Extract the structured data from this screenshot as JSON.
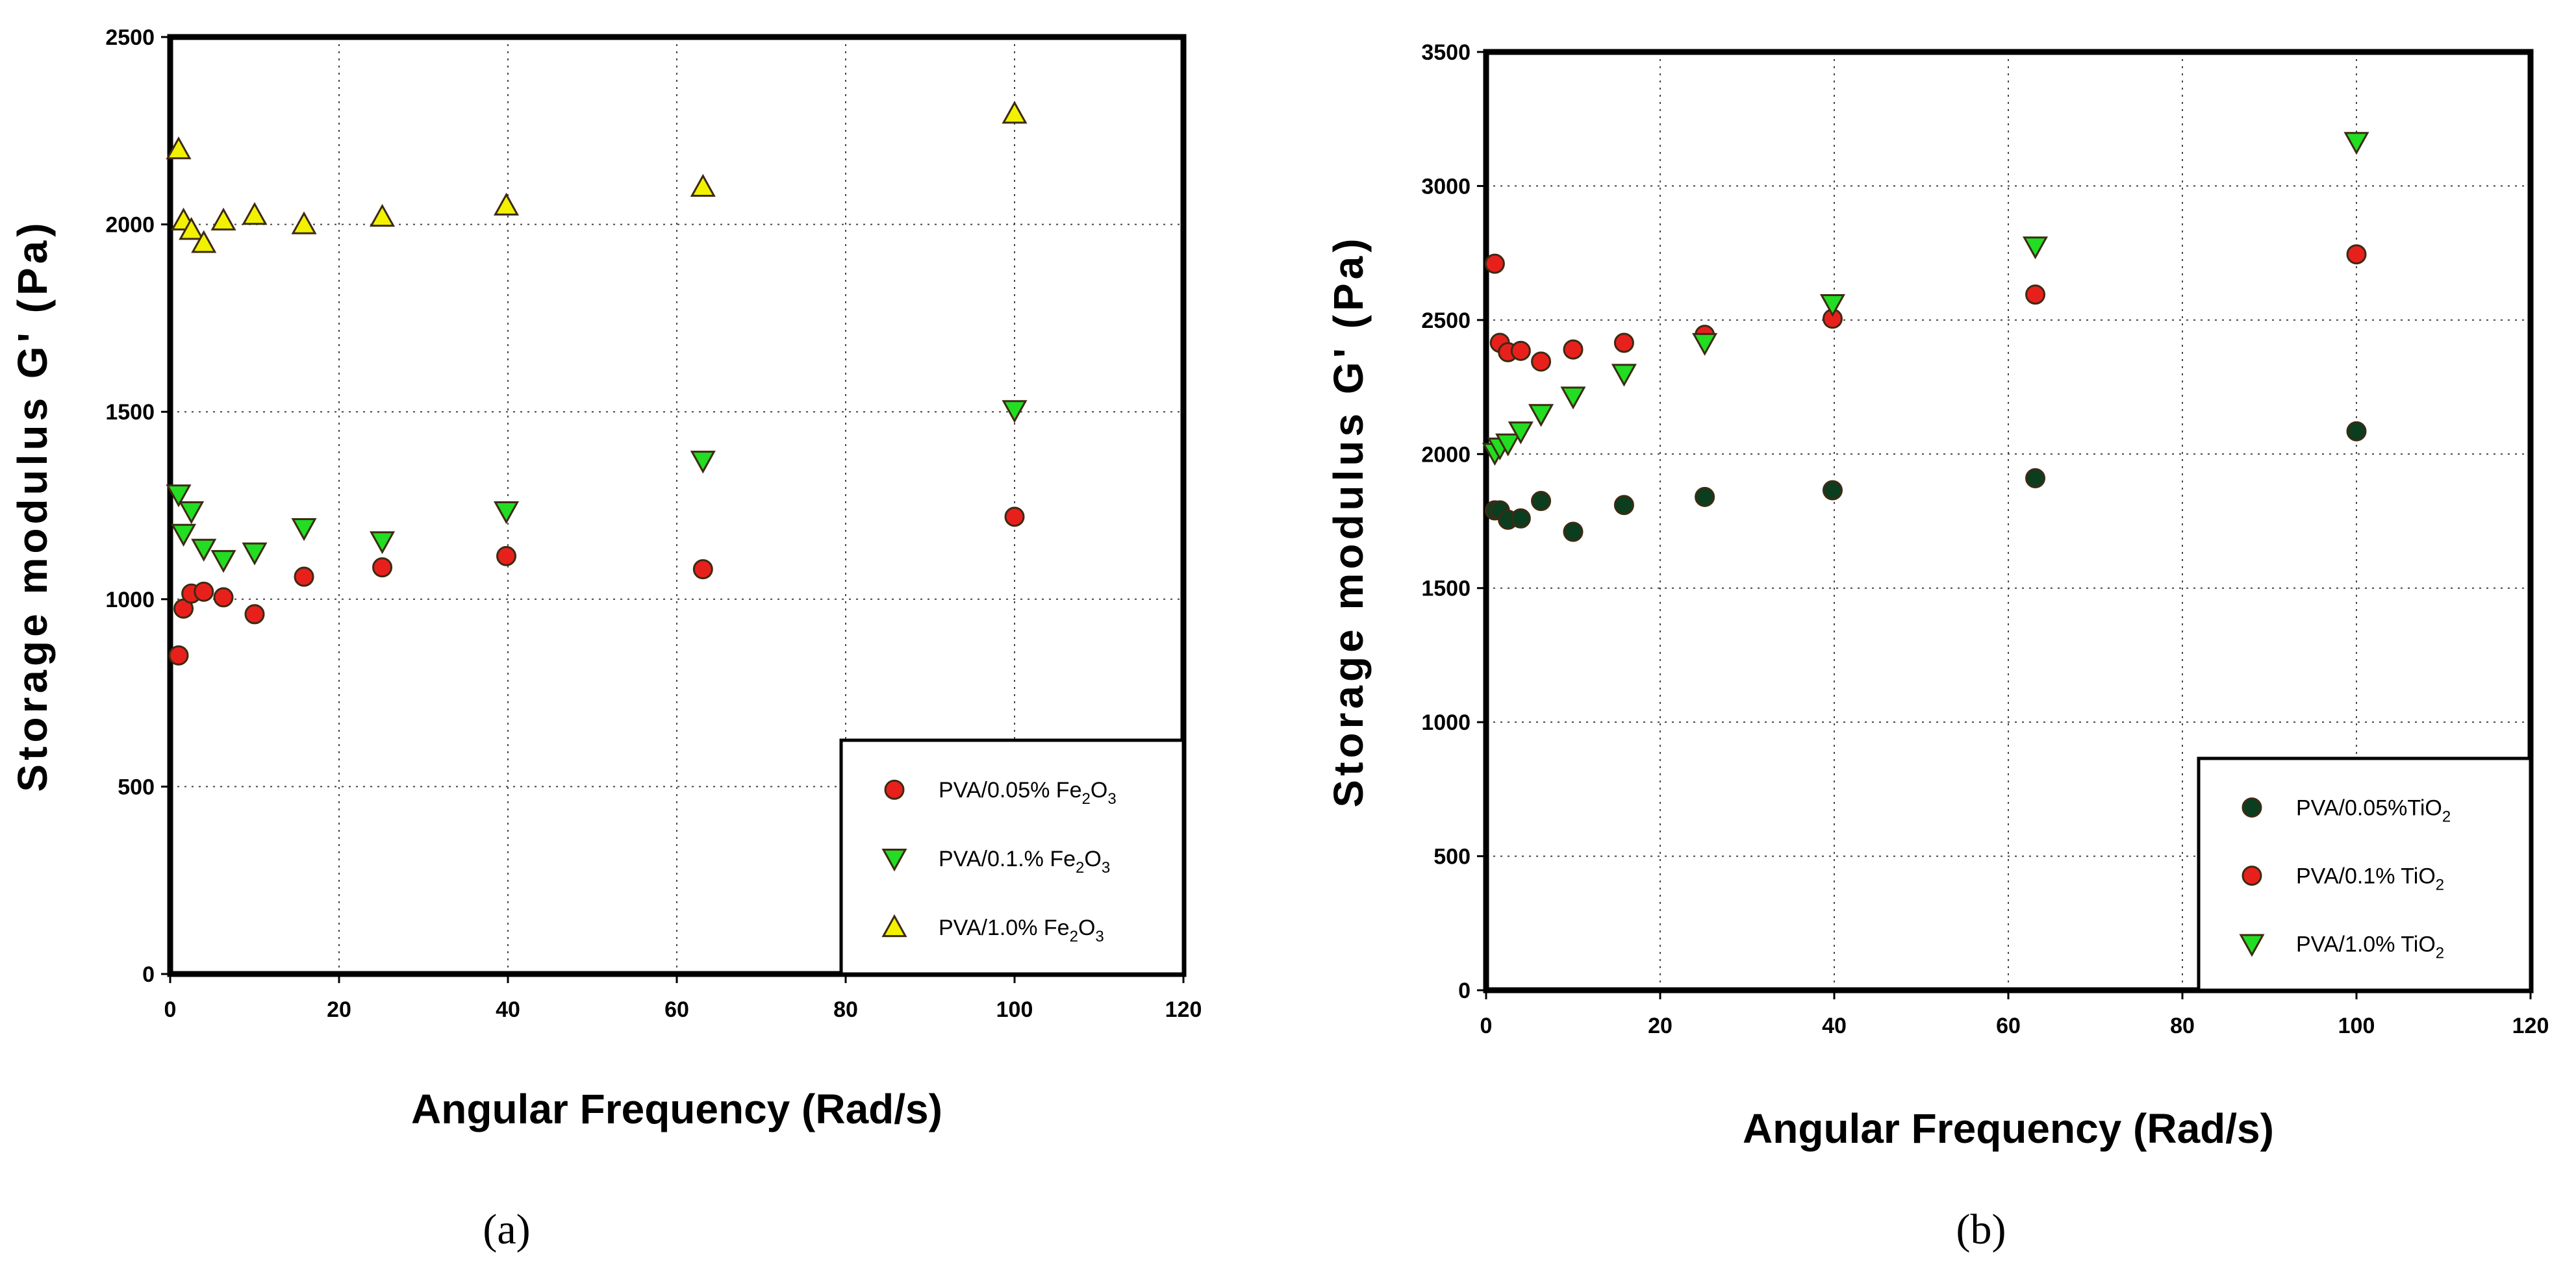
{
  "chart_data": [
    {
      "type": "scatter",
      "panel_label": "(a)",
      "xlabel": "Angular Frequency (Rad/s)",
      "ylabel": "Storage modulus G' (Pa)",
      "xlim": [
        0,
        120
      ],
      "ylim": [
        0,
        2500
      ],
      "xticks": [
        0,
        20,
        40,
        60,
        80,
        100,
        120
      ],
      "yticks": [
        0,
        500,
        1000,
        1500,
        2000,
        2500
      ],
      "grid": true,
      "legend_position": "bottom-right",
      "series": [
        {
          "name": "PVA/0.05% Fe2O3",
          "label_parts": [
            "PVA/0.05% Fe",
            "2",
            "O",
            "3"
          ],
          "marker": "circle",
          "color": "#e8201c",
          "x": [
            1,
            1.58,
            2.51,
            3.98,
            6.31,
            10,
            15.85,
            25.12,
            39.81,
            63.1,
            100
          ],
          "y": [
            850,
            975,
            1015,
            1020,
            1005,
            960,
            1060,
            1085,
            1115,
            1080,
            1220
          ]
        },
        {
          "name": "PVA/0.1.% Fe2O3",
          "label_parts": [
            "PVA/0.1.% Fe",
            "2",
            "O",
            "3"
          ],
          "marker": "triangle-down",
          "color": "#22dd22",
          "x": [
            1,
            1.58,
            2.51,
            3.98,
            6.31,
            10,
            15.85,
            25.12,
            39.81,
            63.1,
            100
          ],
          "y": [
            1280,
            1175,
            1235,
            1135,
            1105,
            1125,
            1190,
            1155,
            1235,
            1370,
            1505
          ]
        },
        {
          "name": "PVA/1.0% Fe2O3",
          "label_parts": [
            "PVA/1.0% Fe",
            "2",
            "O",
            "3"
          ],
          "marker": "triangle-up",
          "color": "#f2f200",
          "x": [
            1,
            1.58,
            2.51,
            3.98,
            6.31,
            10,
            15.85,
            25.12,
            39.81,
            63.1,
            100
          ],
          "y": [
            2200,
            2010,
            1985,
            1950,
            2010,
            2025,
            2000,
            2020,
            2050,
            2100,
            2295
          ]
        }
      ]
    },
    {
      "type": "scatter",
      "panel_label": "(b)",
      "xlabel": "Angular Frequency (Rad/s)",
      "ylabel": "Storage modulus G' (Pa)",
      "xlim": [
        0,
        120
      ],
      "ylim": [
        0,
        3500
      ],
      "xticks": [
        0,
        20,
        40,
        60,
        80,
        100,
        120
      ],
      "yticks": [
        0,
        500,
        1000,
        1500,
        2000,
        2500,
        3000,
        3500
      ],
      "grid": true,
      "legend_position": "bottom-right",
      "series": [
        {
          "name": "PVA/0.05% TiO2",
          "label_parts": [
            "PVA/0.05%TiO",
            "2",
            "",
            ""
          ],
          "marker": "circle",
          "color": "#0b3d1f",
          "x": [
            1,
            1.58,
            2.51,
            3.98,
            6.31,
            10,
            15.85,
            25.12,
            39.81,
            63.1,
            100
          ],
          "y": [
            1790,
            1790,
            1755,
            1760,
            1825,
            1710,
            1810,
            1840,
            1865,
            1910,
            2085
          ]
        },
        {
          "name": "PVA/0.1% TiO2",
          "label_parts": [
            "PVA/0.1% TiO",
            "2",
            "",
            ""
          ],
          "marker": "circle",
          "color": "#e8201c",
          "x": [
            1,
            1.58,
            2.51,
            3.98,
            6.31,
            10,
            15.85,
            25.12,
            39.81,
            63.1,
            100
          ],
          "y": [
            2710,
            2415,
            2380,
            2385,
            2345,
            2390,
            2415,
            2445,
            2505,
            2595,
            2745
          ]
        },
        {
          "name": "PVA/1.0% TiO2",
          "label_parts": [
            "PVA/1.0% TiO",
            "2",
            "",
            ""
          ],
          "marker": "triangle-down",
          "color": "#22dd22",
          "x": [
            1,
            1.58,
            2.51,
            3.98,
            6.31,
            10,
            15.85,
            25.12,
            39.81,
            63.1,
            100
          ],
          "y": [
            2005,
            2025,
            2040,
            2085,
            2150,
            2215,
            2300,
            2415,
            2560,
            2775,
            3165
          ]
        }
      ]
    }
  ]
}
